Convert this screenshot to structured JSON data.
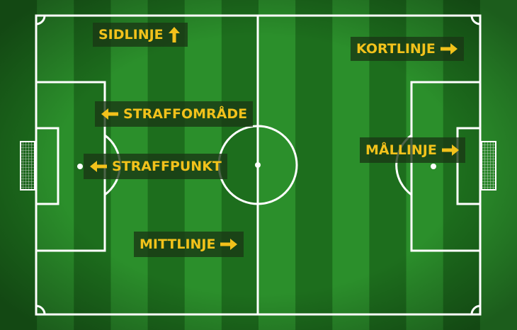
{
  "labels": {
    "sidlinje": "SIDLINJE",
    "kortlinje": "KORTLINJE",
    "straffomrade": "STRAFFOMRÅDE",
    "straffpunkt": "STRAFFPUNKT",
    "mallinje": "MÅLLINJE",
    "mittlinje": "MITTLINJE"
  },
  "colors": {
    "label_text": "#f2c21b",
    "label_bg": "#19371 4",
    "grass_dark": "#1d6e1d",
    "grass_light": "#2b8f2b",
    "lines": "#ffffff"
  }
}
